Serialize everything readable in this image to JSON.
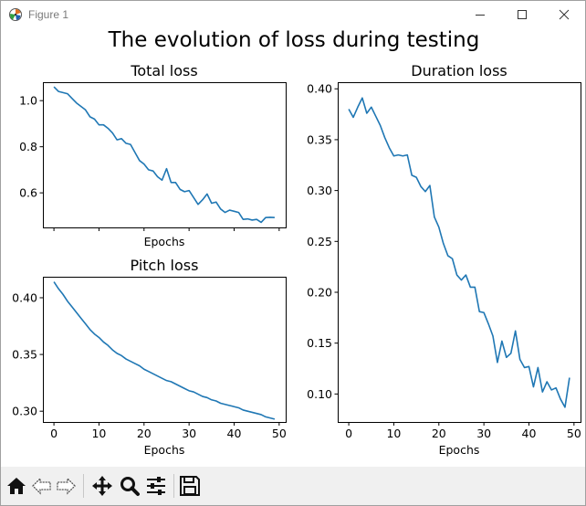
{
  "window": {
    "title": "Figure 1"
  },
  "figure": {
    "suptitle": "The evolution of loss during testing"
  },
  "toolbar": {
    "buttons": [
      "home-icon",
      "back-icon",
      "forward-icon",
      "pan-icon",
      "zoom-icon",
      "configure-subplots-icon",
      "save-icon"
    ]
  },
  "colors": {
    "line": "#1f77b4",
    "toolbar_bg": "#f0f0f0"
  },
  "chart_data": [
    {
      "type": "line",
      "title": "Total loss",
      "xlabel": "Epochs",
      "ylabel": "",
      "xlim": [
        -2.45,
        51.45
      ],
      "ylim": [
        0.45,
        1.08
      ],
      "xticks": [
        0,
        10,
        20,
        30,
        40,
        50
      ],
      "xticklabels_visible": false,
      "yticks": [
        0.6,
        0.8,
        1.0
      ],
      "yticklabels": [
        "0.6",
        "0.8",
        "1.0"
      ],
      "grid": false,
      "series": [
        {
          "x": [
            0,
            1,
            2,
            3,
            4,
            5,
            6,
            7,
            8,
            9,
            10,
            11,
            12,
            13,
            14,
            15,
            16,
            17,
            18,
            19,
            20,
            21,
            22,
            23,
            24,
            25,
            26,
            27,
            28,
            29,
            30,
            31,
            32,
            33,
            34,
            35,
            36,
            37,
            38,
            39,
            40,
            41,
            42,
            43,
            44,
            45,
            46,
            47,
            48,
            49
          ],
          "values": [
            1.06,
            1.04,
            1.035,
            1.03,
            1.01,
            0.99,
            0.975,
            0.96,
            0.93,
            0.92,
            0.895,
            0.895,
            0.88,
            0.86,
            0.83,
            0.835,
            0.815,
            0.81,
            0.775,
            0.74,
            0.725,
            0.7,
            0.695,
            0.67,
            0.655,
            0.705,
            0.645,
            0.645,
            0.615,
            0.605,
            0.61,
            0.58,
            0.55,
            0.57,
            0.595,
            0.555,
            0.56,
            0.53,
            0.515,
            0.525,
            0.52,
            0.515,
            0.485,
            0.487,
            0.482,
            0.485,
            0.472,
            0.493,
            0.494,
            0.493
          ]
        }
      ]
    },
    {
      "type": "line",
      "title": "Pitch loss",
      "xlabel": "Epochs",
      "ylabel": "",
      "xlim": [
        -2.45,
        51.45
      ],
      "ylim": [
        0.2905,
        0.4185
      ],
      "xticks": [
        0,
        10,
        20,
        30,
        40,
        50
      ],
      "xticklabels": [
        "0",
        "10",
        "20",
        "30",
        "40",
        "50"
      ],
      "yticks": [
        0.3,
        0.35,
        0.4
      ],
      "yticklabels": [
        "0.30",
        "0.35",
        "0.40"
      ],
      "grid": false,
      "series": [
        {
          "x": [
            0,
            1,
            2,
            3,
            4,
            5,
            6,
            7,
            8,
            9,
            10,
            11,
            12,
            13,
            14,
            15,
            16,
            17,
            18,
            19,
            20,
            21,
            22,
            23,
            24,
            25,
            26,
            27,
            28,
            29,
            30,
            31,
            32,
            33,
            34,
            35,
            36,
            37,
            38,
            39,
            40,
            41,
            42,
            43,
            44,
            45,
            46,
            47,
            48,
            49
          ],
          "values": [
            0.414,
            0.408,
            0.403,
            0.397,
            0.392,
            0.387,
            0.382,
            0.377,
            0.372,
            0.368,
            0.365,
            0.361,
            0.358,
            0.354,
            0.351,
            0.349,
            0.346,
            0.344,
            0.342,
            0.34,
            0.337,
            0.335,
            0.333,
            0.331,
            0.329,
            0.327,
            0.326,
            0.324,
            0.322,
            0.32,
            0.318,
            0.317,
            0.315,
            0.313,
            0.312,
            0.31,
            0.309,
            0.307,
            0.306,
            0.305,
            0.304,
            0.303,
            0.301,
            0.3,
            0.299,
            0.298,
            0.297,
            0.295,
            0.294,
            0.293
          ]
        }
      ]
    },
    {
      "type": "line",
      "title": "Duration loss",
      "xlabel": "Epochs",
      "ylabel": "",
      "xlim": [
        -2.45,
        51.45
      ],
      "ylim": [
        0.0725,
        0.4065
      ],
      "xticks": [
        0,
        10,
        20,
        30,
        40,
        50
      ],
      "xticklabels": [
        "0",
        "10",
        "20",
        "30",
        "40",
        "50"
      ],
      "yticks": [
        0.1,
        0.15,
        0.2,
        0.25,
        0.3,
        0.35,
        0.4
      ],
      "yticklabels": [
        "0.10",
        "0.15",
        "0.20",
        "0.25",
        "0.30",
        "0.35",
        "0.40"
      ],
      "grid": false,
      "series": [
        {
          "x": [
            0,
            1,
            2,
            3,
            4,
            5,
            6,
            7,
            8,
            9,
            10,
            11,
            12,
            13,
            14,
            15,
            16,
            17,
            18,
            19,
            20,
            21,
            22,
            23,
            24,
            25,
            26,
            27,
            28,
            29,
            30,
            31,
            32,
            33,
            34,
            35,
            36,
            37,
            38,
            39,
            40,
            41,
            42,
            43,
            44,
            45,
            46,
            47,
            48,
            49
          ],
          "values": [
            0.38,
            0.372,
            0.382,
            0.391,
            0.376,
            0.382,
            0.373,
            0.364,
            0.352,
            0.342,
            0.334,
            0.335,
            0.334,
            0.335,
            0.315,
            0.313,
            0.304,
            0.299,
            0.305,
            0.274,
            0.264,
            0.248,
            0.236,
            0.233,
            0.217,
            0.212,
            0.217,
            0.205,
            0.205,
            0.181,
            0.18,
            0.169,
            0.157,
            0.131,
            0.152,
            0.136,
            0.14,
            0.162,
            0.134,
            0.126,
            0.127,
            0.107,
            0.126,
            0.102,
            0.112,
            0.104,
            0.106,
            0.095,
            0.087,
            0.116
          ]
        }
      ]
    }
  ]
}
